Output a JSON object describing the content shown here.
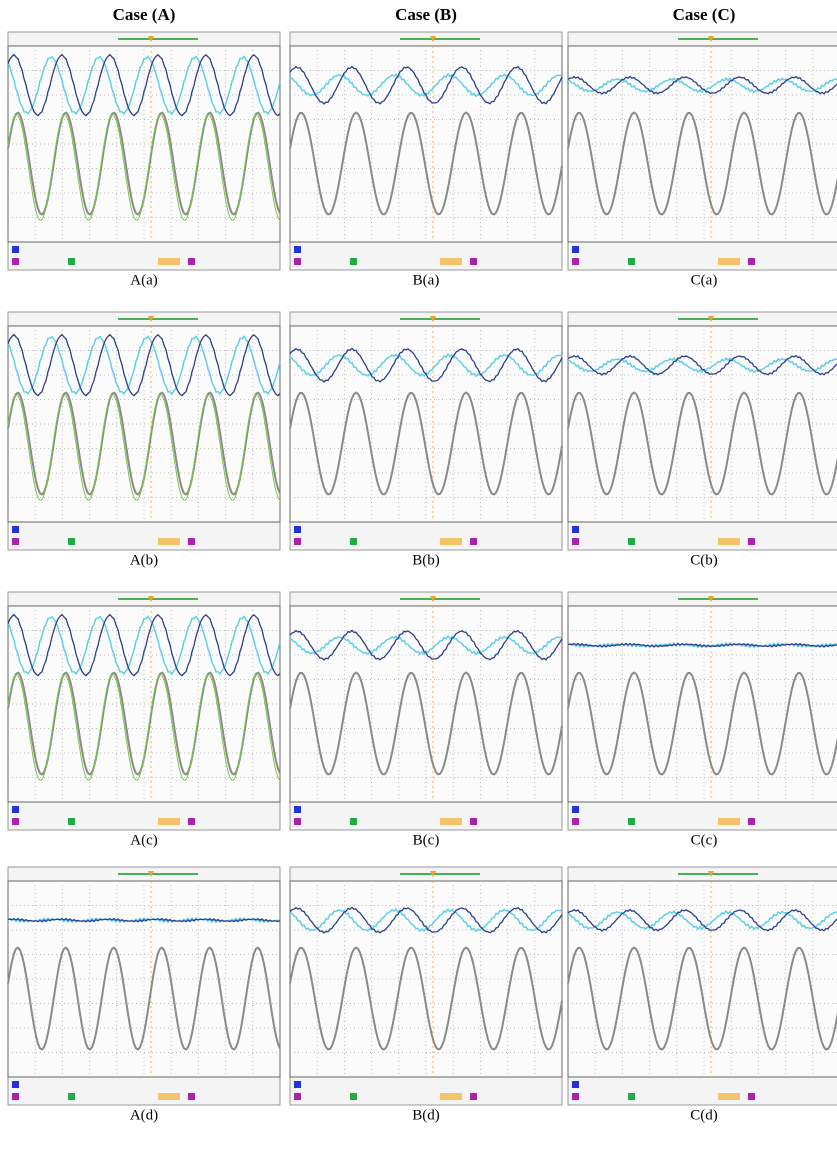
{
  "header": {
    "columns": [
      "Case (A)",
      "Case (B)",
      "Case (C)"
    ]
  },
  "panels": [
    {
      "label": "A(a)"
    },
    {
      "label": "B(a)"
    },
    {
      "label": "C(a)"
    },
    {
      "label": "A(b)"
    },
    {
      "label": "B(b)"
    },
    {
      "label": "C(b)"
    },
    {
      "label": "A(c)"
    },
    {
      "label": "B(c)"
    },
    {
      "label": "C(c)"
    },
    {
      "label": "A(d)"
    },
    {
      "label": "B(d)"
    },
    {
      "label": "C(d)"
    }
  ]
}
